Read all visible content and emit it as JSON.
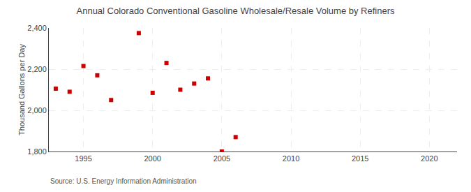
{
  "chart_data": {
    "type": "scatter",
    "title": "Annual Colorado Conventional Gasoline Wholesale/Resale Volume by Refiners",
    "ylabel": "Thousand Gallons per Day",
    "annotations": [
      "Source: U.S. Energy Information Administration"
    ],
    "x": [
      1993,
      1994,
      1995,
      1996,
      1997,
      1999,
      2000,
      2001,
      2002,
      2003,
      2004,
      2005,
      2006
    ],
    "values": [
      2105,
      2090,
      2215,
      2170,
      2050,
      2375,
      2085,
      2230,
      2100,
      2130,
      2155,
      1800,
      1870
    ],
    "color": "#cc0000",
    "marker": "square",
    "xlim": [
      1992.5,
      2022
    ],
    "xticks": [
      1995,
      2000,
      2005,
      2010,
      2015,
      2020
    ],
    "ylim": [
      1800,
      2400
    ],
    "yticks": [
      {
        "value": 1800,
        "label": "1,800"
      },
      {
        "value": 2000,
        "label": "2,000"
      },
      {
        "value": 2200,
        "label": "2,200"
      },
      {
        "value": 2400,
        "label": "2,400"
      }
    ],
    "grid": true
  }
}
